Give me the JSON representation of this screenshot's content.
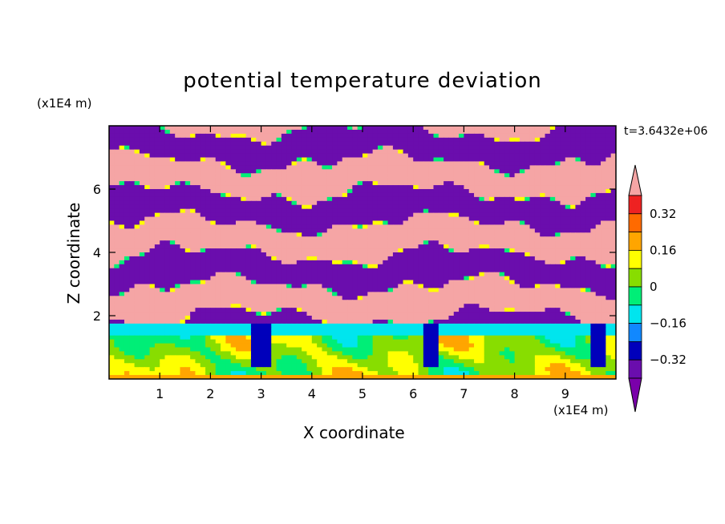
{
  "chart_data": {
    "type": "heatmap",
    "title": "potential temperature deviation",
    "xlabel": "X coordinate",
    "ylabel": "Z coordinate",
    "x_unit": "(x1E4 m)",
    "y_unit": "(x1E4 m)",
    "time_label": "t=3.6432e+06",
    "xlim": [
      0,
      10
    ],
    "ylim": [
      0,
      8
    ],
    "x_ticks": [
      "1",
      "2",
      "3",
      "4",
      "5",
      "6",
      "7",
      "8",
      "9"
    ],
    "y_ticks": [
      "2",
      "4",
      "6"
    ],
    "colorbar": {
      "labels": [
        "0.32",
        "0.16",
        "0",
        "-0.16",
        "-0.32"
      ],
      "label_values": [
        0.32,
        0.16,
        0,
        -0.16,
        -0.32
      ],
      "levels": [
        0.4,
        0.32,
        0.24,
        0.16,
        0.08,
        0,
        -0.08,
        -0.16,
        -0.24,
        -0.32,
        -0.4
      ],
      "colors": [
        "#f5a5a5",
        "#ee2222",
        "#ff6a00",
        "#ffa500",
        "#ffff00",
        "#88dd00",
        "#00ee77",
        "#00e5ee",
        "#1188ff",
        "#0000bb",
        "#6a0dad",
        "#7a00aa"
      ],
      "extend": "both"
    },
    "regions": {
      "upper_layer": {
        "z_range": [
          1.8,
          8
        ],
        "values": [
          0.4,
          -0.4
        ],
        "pattern": "alternating horizontal bands"
      },
      "boundary_layer": {
        "z_range": [
          0,
          1.8
        ],
        "values": [
          -0.16,
          0.24
        ],
        "pattern": "convective eddies"
      }
    }
  }
}
